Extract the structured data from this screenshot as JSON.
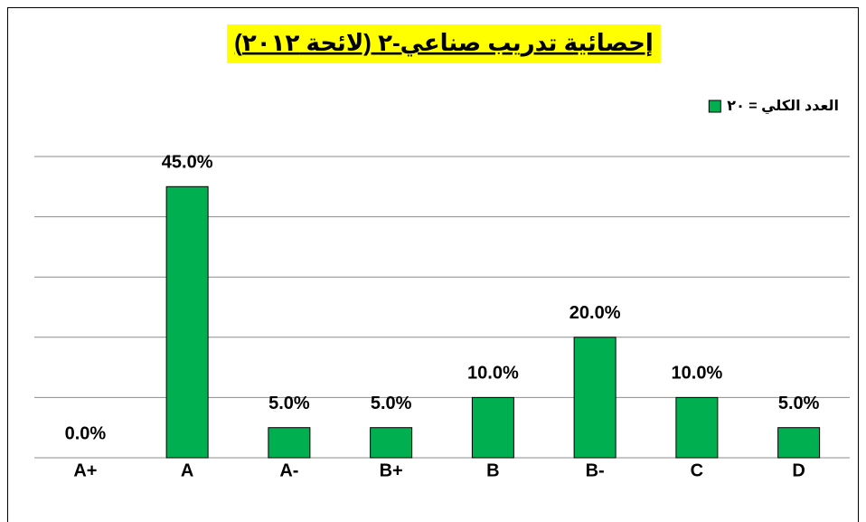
{
  "chart_data": {
    "type": "bar",
    "title": "إحصائية تدريب صناعي-٢ (لائحة ٢٠١٢)",
    "legend": "العدد الكلي = ٢٠",
    "categories": [
      "A+",
      "A",
      "A-",
      "B+",
      "B",
      "B-",
      "C",
      "D"
    ],
    "values": [
      0,
      45,
      5,
      5,
      10,
      20,
      10,
      5
    ],
    "value_labels": [
      "0.0%",
      "45.0%",
      "5.0%",
      "5.0%",
      "10.0%",
      "20.0%",
      "10.0%",
      "5.0%"
    ],
    "color": "#00b050",
    "ylim": [
      0,
      50
    ],
    "yticks": [
      0,
      10,
      20,
      30,
      40,
      50
    ],
    "grid": true
  }
}
